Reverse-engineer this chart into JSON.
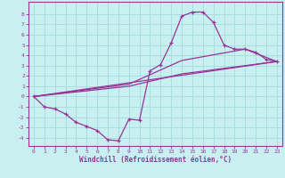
{
  "title": "",
  "xlabel": "Windchill (Refroidissement éolien,°C)",
  "background_color": "#c8f0f0",
  "grid_color": "#aadddd",
  "line_color": "#993399",
  "xlim": [
    -0.5,
    23.5
  ],
  "ylim": [
    -4.8,
    9.2
  ],
  "xticks": [
    0,
    1,
    2,
    3,
    4,
    5,
    6,
    7,
    8,
    9,
    10,
    11,
    12,
    13,
    14,
    15,
    16,
    17,
    18,
    19,
    20,
    21,
    22,
    23
  ],
  "yticks": [
    -4,
    -3,
    -2,
    -1,
    0,
    1,
    2,
    3,
    4,
    5,
    6,
    7,
    8
  ],
  "curve1_x": [
    0,
    1,
    2,
    3,
    4,
    5,
    6,
    7,
    8,
    9,
    10,
    11,
    12,
    13,
    14,
    15,
    16,
    17,
    18,
    19,
    20,
    21,
    22,
    23
  ],
  "curve1_y": [
    0.0,
    -1.0,
    -1.2,
    -1.7,
    -2.5,
    -2.9,
    -3.3,
    -4.2,
    -4.3,
    -2.2,
    -2.3,
    2.5,
    3.1,
    5.2,
    7.8,
    8.2,
    8.2,
    7.2,
    5.0,
    4.6,
    4.6,
    4.3,
    3.6,
    3.4
  ],
  "curve2_x": [
    0,
    23
  ],
  "curve2_y": [
    0.0,
    3.4
  ],
  "curve3_x": [
    0,
    9,
    14,
    23
  ],
  "curve3_y": [
    0.0,
    1.0,
    2.2,
    3.4
  ],
  "curve4_x": [
    0,
    9,
    14,
    20,
    23
  ],
  "curve4_y": [
    0.0,
    1.2,
    3.5,
    4.6,
    3.4
  ]
}
